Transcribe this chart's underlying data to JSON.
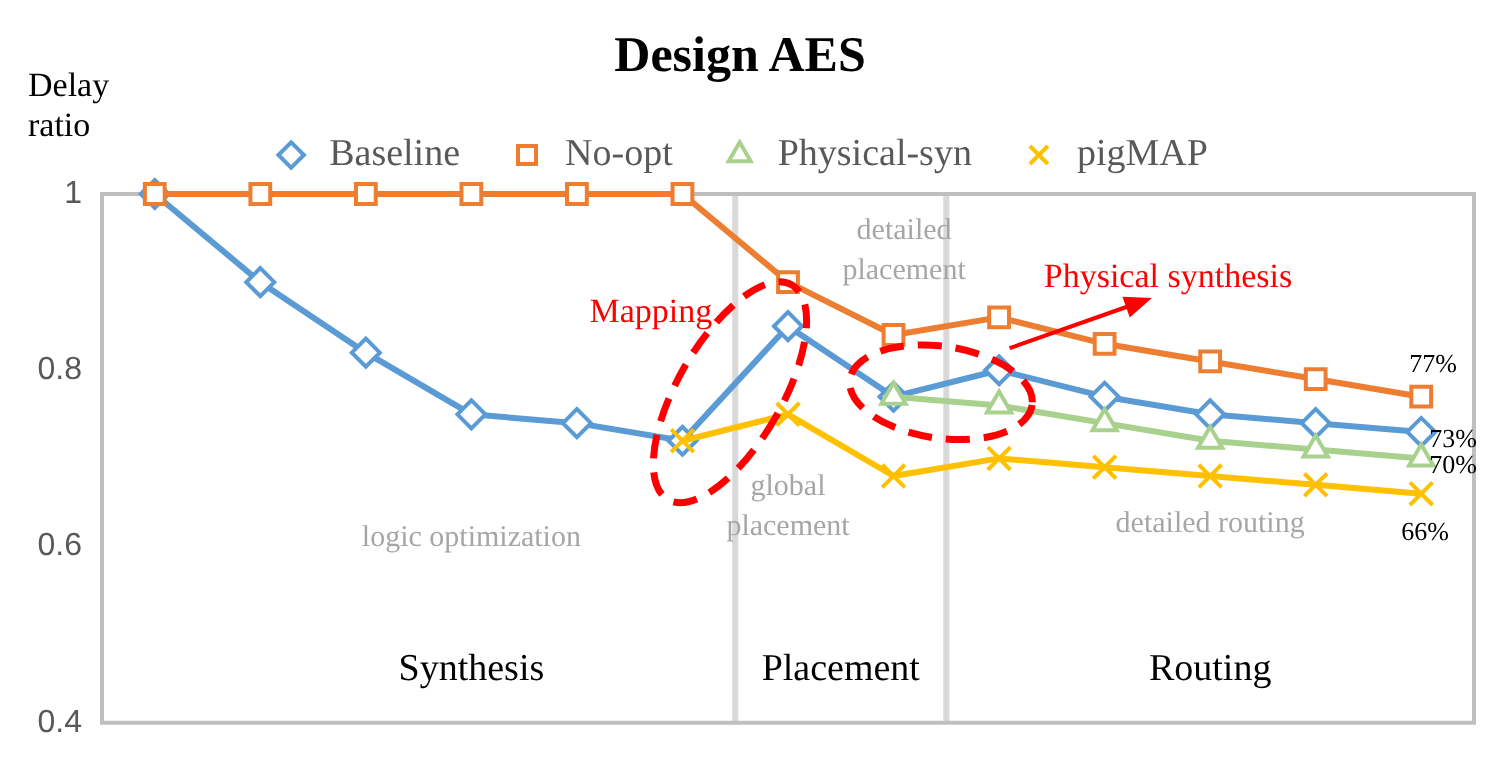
{
  "chart_data": {
    "type": "line",
    "title": "Design AES",
    "ylabel": "Delay ratio",
    "categories": [
      null,
      null,
      null,
      null,
      null,
      null,
      null,
      null,
      null,
      null,
      null,
      null,
      null
    ],
    "series": [
      {
        "name": "Baseline",
        "color": "#5b9bd5",
        "marker": "diamond",
        "values": [
          1.0,
          0.9,
          0.82,
          0.75,
          0.74,
          0.72,
          0.85,
          0.77,
          0.8,
          0.77,
          0.75,
          0.74,
          0.73
        ],
        "value_labels": [
          null,
          null,
          null,
          null,
          null,
          null,
          null,
          null,
          null,
          null,
          null,
          null,
          "73%"
        ]
      },
      {
        "name": "No-opt",
        "color": "#ed7d31",
        "marker": "square",
        "values": [
          1.0,
          1.0,
          1.0,
          1.0,
          1.0,
          1.0,
          0.9,
          0.84,
          0.86,
          0.83,
          0.81,
          0.79,
          0.77
        ],
        "value_labels": [
          null,
          null,
          null,
          null,
          null,
          null,
          null,
          null,
          null,
          null,
          null,
          null,
          "77%"
        ]
      },
      {
        "name": "Physical-syn",
        "color": "#a9d18e",
        "marker": "triangle",
        "values": [
          null,
          null,
          null,
          null,
          null,
          null,
          null,
          0.77,
          0.76,
          0.74,
          0.72,
          0.71,
          0.7
        ],
        "value_labels": [
          null,
          null,
          null,
          null,
          null,
          null,
          null,
          null,
          null,
          null,
          null,
          null,
          "70%"
        ]
      },
      {
        "name": "pigMAP",
        "color": "#ffc000",
        "marker": "cross",
        "values": [
          null,
          null,
          null,
          null,
          null,
          0.72,
          0.75,
          0.68,
          0.7,
          0.69,
          0.68,
          0.67,
          0.66
        ],
        "value_labels": [
          null,
          null,
          null,
          null,
          null,
          null,
          null,
          null,
          null,
          null,
          null,
          null,
          "66%"
        ]
      }
    ],
    "ylim": [
      0.4,
      1.0
    ],
    "yticks": [
      0.4,
      0.6,
      0.8,
      1
    ],
    "annotations": [
      "logic optimization",
      "global placement",
      "detailed placement",
      "detailed routing",
      "Synthesis",
      "Placement",
      "Routing",
      "Mapping",
      "Physical synthesis"
    ],
    "legend": "top",
    "grid": false,
    "tick_labels": "y",
    "line_style": "solid"
  }
}
